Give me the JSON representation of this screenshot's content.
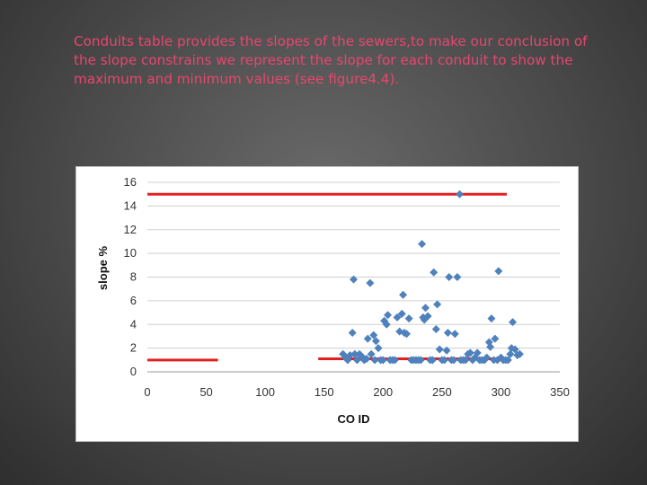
{
  "slide": {
    "body_text": "Conduits table provides the slopes of the sewers,to make our conclusion of the slope constrains we represent the slope for each conduit to show the maximum and minimum values (see figure4.4)."
  },
  "colors": {
    "background": "#4a4a4a",
    "text": "#e7466f",
    "points": "#4f81bd",
    "limit_lines": "#e02020",
    "gridlines": "#d0d0d0"
  },
  "chart_data": {
    "type": "scatter",
    "title": "",
    "xlabel": "CO ID",
    "ylabel": "slope %",
    "xlim": [
      0,
      350
    ],
    "ylim": [
      0,
      16
    ],
    "xticks": [
      0,
      50,
      100,
      150,
      200,
      250,
      300,
      350
    ],
    "yticks": [
      0,
      2,
      4,
      6,
      8,
      10,
      12,
      14,
      16
    ],
    "grid": {
      "horizontal": true,
      "vertical": false
    },
    "legend": "none",
    "points": [
      [
        166,
        1.5
      ],
      [
        168,
        1.2
      ],
      [
        170,
        1.0
      ],
      [
        172,
        1.4
      ],
      [
        174,
        3.3
      ],
      [
        175,
        7.8
      ],
      [
        176,
        1.5
      ],
      [
        178,
        1.0
      ],
      [
        180,
        1.5
      ],
      [
        182,
        1.3
      ],
      [
        184,
        1.0
      ],
      [
        186,
        1.1
      ],
      [
        187,
        2.8
      ],
      [
        189,
        7.5
      ],
      [
        190,
        1.5
      ],
      [
        192,
        3.1
      ],
      [
        193,
        1.0
      ],
      [
        194,
        2.6
      ],
      [
        196,
        2.0
      ],
      [
        198,
        1.0
      ],
      [
        200,
        1.0
      ],
      [
        201,
        4.3
      ],
      [
        203,
        4.0
      ],
      [
        204,
        4.8
      ],
      [
        206,
        1.0
      ],
      [
        208,
        1.0
      ],
      [
        210,
        1.0
      ],
      [
        212,
        4.6
      ],
      [
        214,
        3.4
      ],
      [
        216,
        4.9
      ],
      [
        217,
        6.5
      ],
      [
        218,
        3.3
      ],
      [
        220,
        3.2
      ],
      [
        222,
        4.5
      ],
      [
        224,
        1.0
      ],
      [
        226,
        1.0
      ],
      [
        228,
        1.0
      ],
      [
        230,
        1.0
      ],
      [
        232,
        1.0
      ],
      [
        233,
        10.8
      ],
      [
        234,
        4.6
      ],
      [
        235,
        4.4
      ],
      [
        236,
        5.4
      ],
      [
        238,
        4.7
      ],
      [
        240,
        1.0
      ],
      [
        242,
        1.0
      ],
      [
        243,
        8.4
      ],
      [
        245,
        3.6
      ],
      [
        246,
        5.7
      ],
      [
        248,
        1.9
      ],
      [
        250,
        1.0
      ],
      [
        252,
        1.0
      ],
      [
        254,
        1.8
      ],
      [
        255,
        3.3
      ],
      [
        256,
        8.0
      ],
      [
        258,
        1.0
      ],
      [
        260,
        1.0
      ],
      [
        261,
        3.2
      ],
      [
        263,
        8.0
      ],
      [
        265,
        15.0
      ],
      [
        266,
        1.0
      ],
      [
        268,
        1.0
      ],
      [
        270,
        1.0
      ],
      [
        272,
        1.5
      ],
      [
        274,
        1.6
      ],
      [
        276,
        1.0
      ],
      [
        278,
        1.2
      ],
      [
        280,
        1.6
      ],
      [
        282,
        1.0
      ],
      [
        284,
        1.0
      ],
      [
        286,
        1.0
      ],
      [
        288,
        1.2
      ],
      [
        290,
        2.5
      ],
      [
        291,
        2.1
      ],
      [
        292,
        4.5
      ],
      [
        294,
        1.0
      ],
      [
        295,
        2.8
      ],
      [
        297,
        1.0
      ],
      [
        298,
        8.5
      ],
      [
        300,
        1.2
      ],
      [
        302,
        1.0
      ],
      [
        304,
        1.0
      ],
      [
        306,
        1.0
      ],
      [
        308,
        1.5
      ],
      [
        309,
        2.0
      ],
      [
        310,
        4.2
      ],
      [
        312,
        1.9
      ],
      [
        314,
        1.4
      ],
      [
        316,
        1.5
      ]
    ],
    "limit_lines": [
      {
        "y": 15,
        "x_range": [
          0,
          305
        ]
      },
      {
        "y": 1,
        "x_range": [
          0,
          60
        ]
      },
      {
        "y": 1.1,
        "x_range": [
          145,
          305
        ]
      }
    ]
  }
}
